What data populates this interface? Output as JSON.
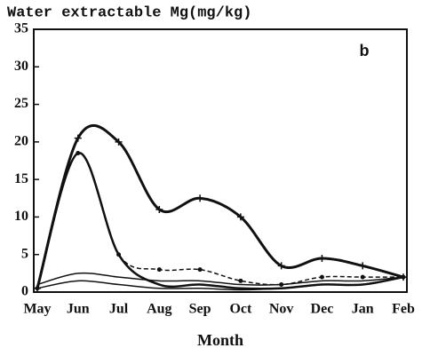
{
  "chart_data": {
    "type": "line",
    "title": "Water extractable Mg(mg/kg)",
    "annotation": "b",
    "x_label": "Month",
    "categories": [
      "May",
      "Jun",
      "Jul",
      "Aug",
      "Sep",
      "Oct",
      "Nov",
      "Dec",
      "Jan",
      "Feb"
    ],
    "ylim": [
      0,
      35
    ],
    "yticks": [
      0,
      5,
      10,
      15,
      20,
      25,
      30,
      35
    ],
    "series": [
      {
        "color": "#111111",
        "width": 3,
        "marker": "+",
        "values": [
          0.5,
          20.5,
          20,
          11,
          12.5,
          10,
          3.5,
          4.5,
          3.5,
          2
        ]
      },
      {
        "color": "#111111",
        "width": 2.5,
        "values": [
          0.5,
          18.5,
          5,
          1,
          1,
          0.5,
          0.5,
          1,
          1,
          2
        ]
      },
      {
        "color": "#111111",
        "width": 1.5,
        "line_style": "dashed",
        "marker": "o",
        "values": [
          0.5,
          18.5,
          5,
          3,
          3,
          1.5,
          1,
          2,
          2,
          2
        ]
      },
      {
        "color": "#111111",
        "width": 1.5,
        "values": [
          1,
          2.5,
          2,
          1.5,
          1.5,
          1,
          1,
          1.5,
          1.5,
          2
        ]
      },
      {
        "color": "#111111",
        "width": 1.5,
        "values": [
          0.5,
          1.5,
          1,
          0.5,
          0.5,
          0.3,
          0.5,
          1,
          1,
          2
        ]
      }
    ]
  }
}
